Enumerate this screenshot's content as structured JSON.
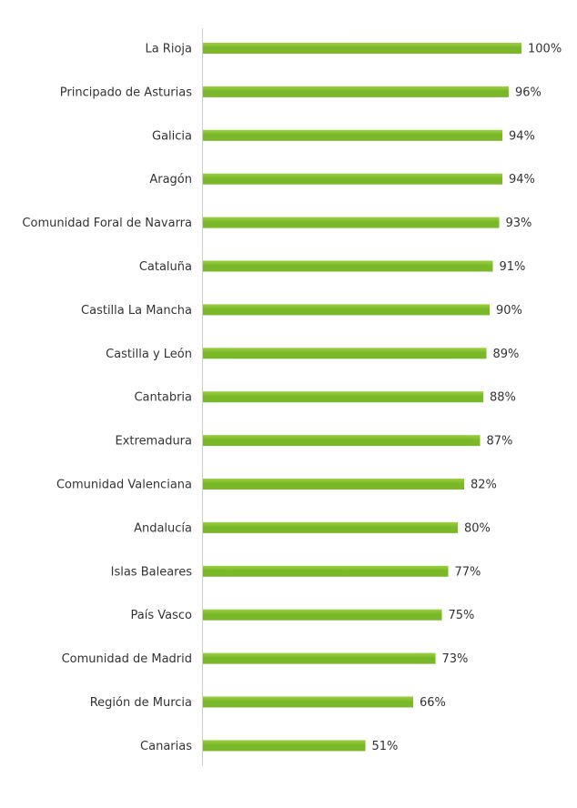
{
  "chart_data": {
    "type": "bar",
    "orientation": "horizontal",
    "categories": [
      "La Rioja",
      "Principado de Asturias",
      "Galicia",
      "Aragón",
      "Comunidad Foral de Navarra",
      "Cataluña",
      "Castilla La Mancha",
      "Castilla y León",
      "Cantabria",
      "Extremadura",
      "Comunidad Valenciana",
      "Andalucía",
      "Islas Baleares",
      "País Vasco",
      "Comunidad de Madrid",
      "Región de Murcia",
      "Canarias"
    ],
    "values": [
      100,
      96,
      94,
      94,
      93,
      91,
      90,
      89,
      88,
      87,
      82,
      80,
      77,
      75,
      73,
      66,
      51
    ],
    "value_labels": [
      "100%",
      "96%",
      "94%",
      "94%",
      "93%",
      "91%",
      "90%",
      "89%",
      "88%",
      "87%",
      "82%",
      "80%",
      "77%",
      "75%",
      "73%",
      "66%",
      "51%"
    ],
    "xlim": [
      0,
      100
    ],
    "unit": "%",
    "grid": false,
    "legend": "none",
    "bar_color": "#7ab829",
    "bar_highlight": "#9bd13f",
    "axis_color": "#cccccc",
    "text_color": "#333333"
  }
}
